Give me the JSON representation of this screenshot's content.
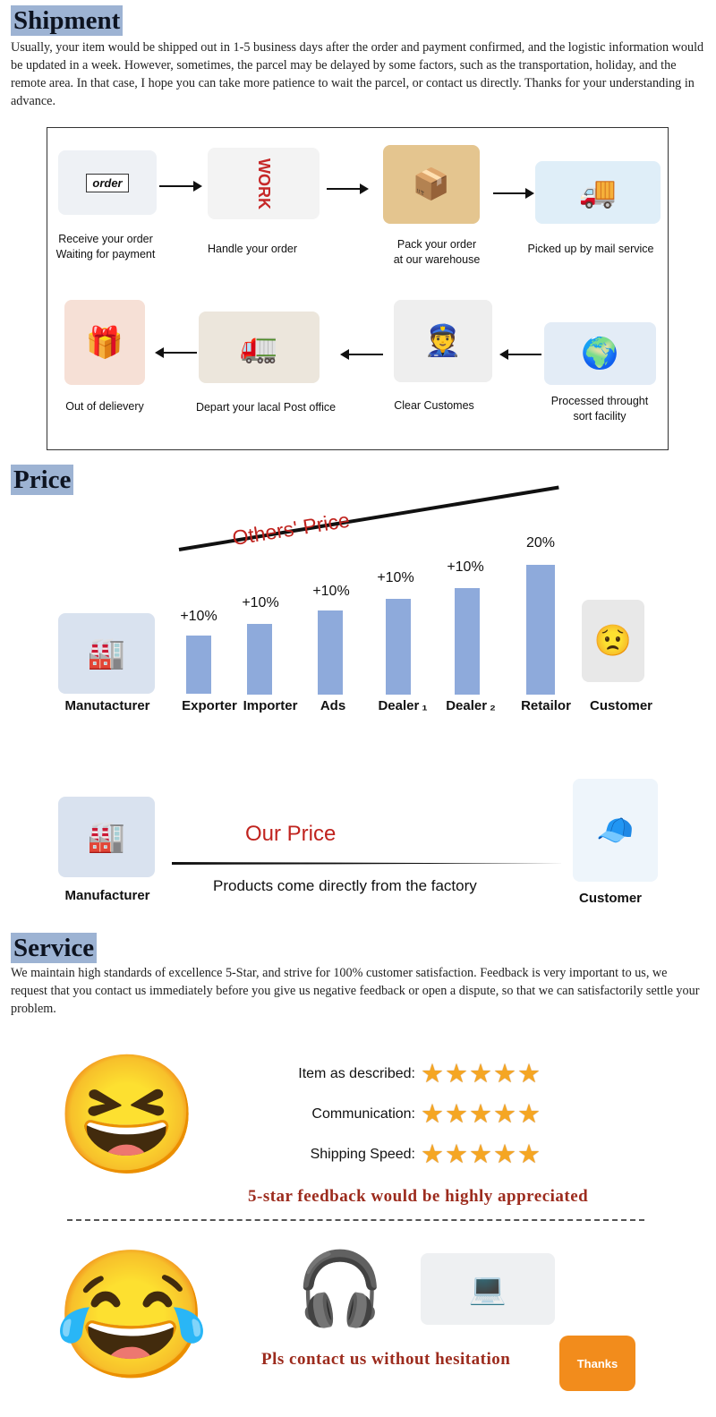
{
  "shipment": {
    "heading": "Shipment",
    "text": "Usually, your item would be shipped out in 1-5 business days after the order and  payment confirmed, and the logistic information would be updated in a week. However, sometimes, the parcel may be delayed by some factors, such as the transportation, holiday, and the remote area. In that case, I hope you can take more patience to wait the parcel, or contact us directly. Thanks for your understanding in advance.",
    "steps": [
      {
        "label": [
          "Receive your order",
          "Waiting for payment"
        ],
        "icon": "computer-order-icon",
        "art": "order"
      },
      {
        "label": [
          "Handle your order"
        ],
        "icon": "work-printer-icon",
        "art": "WORK"
      },
      {
        "label": [
          "Pack your order",
          "at our warehouse"
        ],
        "icon": "boxes-icon"
      },
      {
        "label": [
          "Picked up by mail service"
        ],
        "icon": "truck-icon"
      },
      {
        "label": [
          "Out of delievery"
        ],
        "icon": "gift-delivery-icon"
      },
      {
        "label": [
          "Depart your lacal Post office"
        ],
        "icon": "delivery-van-icon"
      },
      {
        "label": [
          "Clear Customes"
        ],
        "icon": "customs-officer-icon"
      },
      {
        "label": [
          "Processed throught",
          "sort facility"
        ],
        "icon": "globe-sort-icon"
      }
    ]
  },
  "price": {
    "heading": "Price",
    "others_label": "Others' Price",
    "chain": [
      {
        "name": "Manutacturer",
        "pct": ""
      },
      {
        "name": "Exporter",
        "pct": "+10%"
      },
      {
        "name": "Importer",
        "pct": "+10%"
      },
      {
        "name": "Ads",
        "pct": "+10%"
      },
      {
        "name": "Dealer ₁",
        "pct": "+10%"
      },
      {
        "name": "Dealer ₂",
        "pct": "+10%"
      },
      {
        "name": "Retailor",
        "pct": "20%"
      },
      {
        "name": "Customer",
        "pct": ""
      }
    ],
    "our_label": "Our Price",
    "our_caption": "Products come directly from the factory",
    "our_from": "Manufacturer",
    "our_to": "Customer",
    "accent": "#c0231e",
    "bar_color": "#8eaadb"
  },
  "service": {
    "heading": "Service",
    "text": "We maintain high standards of excellence 5-Star, and strive for 100% customer satisfaction. Feedback is very important to us, we request that you contact us immediately before you give us negative feedback or open a dispute, so that we can satisfactorily settle your problem.",
    "ratings": [
      {
        "label": "Item as described:",
        "stars": 5
      },
      {
        "label": "Communication:",
        "stars": 5
      },
      {
        "label": "Shipping Speed:",
        "stars": 5
      }
    ],
    "star_glyphs": "★★★★★",
    "appeal": "5-star feedback would be highly appreciated",
    "contact": "Pls contact us without hesitation",
    "thanks": "Thanks"
  }
}
